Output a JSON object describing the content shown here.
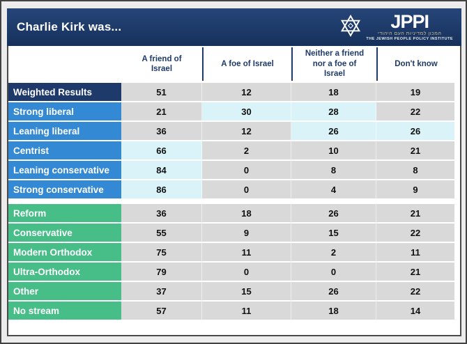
{
  "header": {
    "title": "Charlie Kirk was...",
    "logo": {
      "wordmark": "JPPI",
      "hebrew_name": "המכון למדיניות העם היהודי",
      "english_name": "THE JEWISH PEOPLE POLICY INSTITUTE",
      "icon": "star-of-david-icon"
    }
  },
  "chart_data": {
    "type": "table",
    "title": "Charlie Kirk was...",
    "columns": [
      "A friend of Israel",
      "A foe of Israel",
      "Neither a friend nor a foe of Israel",
      "Don't know"
    ],
    "groups": [
      {
        "name": "political-orientation",
        "rows": [
          {
            "label": "Weighted Results",
            "label_color": "#1e3a6b",
            "values": [
              51,
              12,
              18,
              19
            ],
            "highlight": []
          },
          {
            "label": "Strong liberal",
            "label_color": "#3389d3",
            "values": [
              21,
              30,
              28,
              22
            ],
            "highlight": [
              1,
              2
            ]
          },
          {
            "label": "Leaning liberal",
            "label_color": "#3389d3",
            "values": [
              36,
              12,
              26,
              26
            ],
            "highlight": [
              2,
              3
            ]
          },
          {
            "label": "Centrist",
            "label_color": "#3389d3",
            "values": [
              66,
              2,
              10,
              21
            ],
            "highlight": [
              0
            ]
          },
          {
            "label": "Leaning conservative",
            "label_color": "#3389d3",
            "values": [
              84,
              0,
              8,
              8
            ],
            "highlight": [
              0
            ]
          },
          {
            "label": "Strong conservative",
            "label_color": "#3389d3",
            "values": [
              86,
              0,
              4,
              9
            ],
            "highlight": [
              0
            ]
          }
        ]
      },
      {
        "name": "religious-stream",
        "rows": [
          {
            "label": "Reform",
            "label_color": "#47bd88",
            "values": [
              36,
              18,
              26,
              21
            ],
            "highlight": []
          },
          {
            "label": "Conservative",
            "label_color": "#47bd88",
            "values": [
              55,
              9,
              15,
              22
            ],
            "highlight": []
          },
          {
            "label": "Modern Orthodox",
            "label_color": "#47bd88",
            "values": [
              75,
              11,
              2,
              11
            ],
            "highlight": []
          },
          {
            "label": "Ultra-Orthodox",
            "label_color": "#47bd88",
            "values": [
              79,
              0,
              0,
              21
            ],
            "highlight": []
          },
          {
            "label": "Other",
            "label_color": "#47bd88",
            "values": [
              37,
              15,
              26,
              22
            ],
            "highlight": []
          },
          {
            "label": "No stream",
            "label_color": "#47bd88",
            "values": [
              57,
              11,
              18,
              14
            ],
            "highlight": []
          }
        ]
      }
    ],
    "colors": {
      "header_navy": "#1e3a6b",
      "row_blue": "#3389d3",
      "row_green": "#47bd88",
      "cell_default": "#d9d9d9",
      "cell_highlight": "#d9f3f8"
    },
    "legend_position": "none",
    "grid": false
  }
}
